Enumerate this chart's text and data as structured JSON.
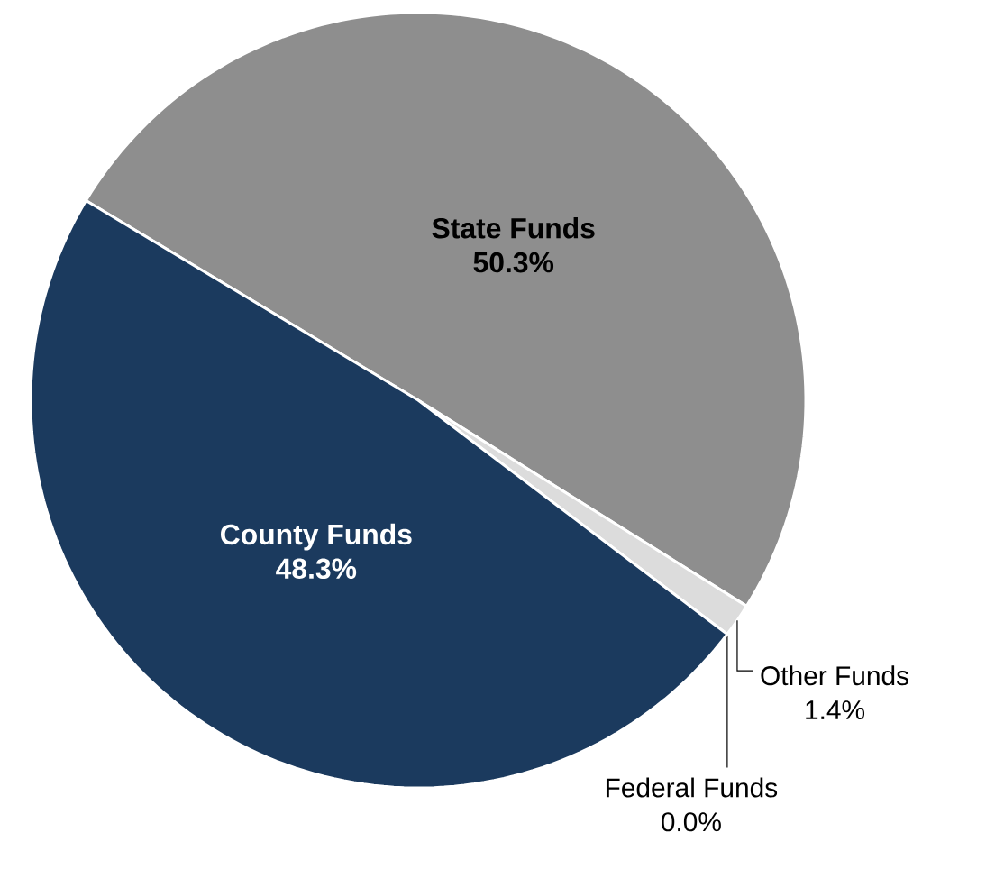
{
  "chart_data": {
    "type": "pie",
    "categories": [
      "State Funds",
      "Other Funds",
      "Federal Funds",
      "County Funds"
    ],
    "values": [
      50.3,
      1.4,
      0.0,
      48.3
    ],
    "colors": [
      "#8e8e8e",
      "#dcdcdc",
      "#c8c8c8",
      "#1b3a5e"
    ],
    "value_labels": [
      "50.3%",
      "1.4%",
      "0.0%",
      "48.3%"
    ]
  }
}
